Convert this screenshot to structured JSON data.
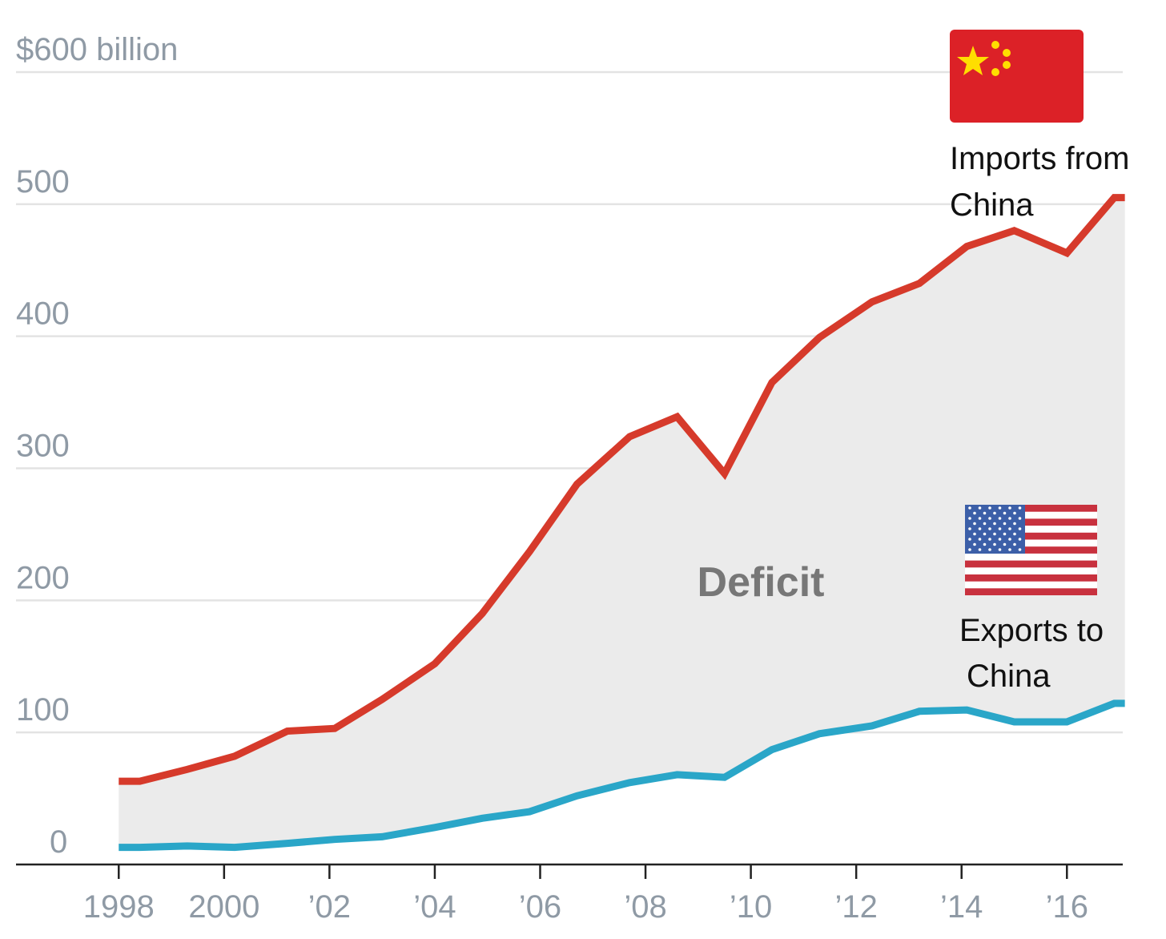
{
  "chart_data": {
    "type": "line",
    "x": [
      1998.0,
      1998.4,
      1999.3,
      2000.2,
      2001.2,
      2002.1,
      2003.0,
      2004.0,
      2004.9,
      2005.8,
      2006.7,
      2007.7,
      2008.6,
      2009.5,
      2010.4,
      2011.3,
      2012.3,
      2013.2,
      2014.1,
      2015.0,
      2016.0,
      2016.9,
      2017.1
    ],
    "series": [
      {
        "label_lines": [
          "Imports from",
          "China"
        ],
        "color": "#d63a2b",
        "values": [
          63,
          63,
          72,
          82,
          101,
          103,
          125,
          152,
          190,
          237,
          288,
          324,
          339,
          296,
          365,
          399,
          426,
          440,
          468,
          480,
          463,
          505,
          505
        ]
      },
      {
        "label_lines": [
          "Exports to",
          "China"
        ],
        "color": "#2aa6c8",
        "values": [
          13,
          13,
          14,
          13,
          16,
          19,
          21,
          28,
          35,
          40,
          52,
          62,
          68,
          66,
          87,
          99,
          105,
          116,
          117,
          108,
          108,
          122,
          122
        ]
      }
    ],
    "annotation": "Deficit",
    "area_color": "#ebebeb",
    "xlim": [
      1996.05,
      2017.06
    ],
    "ylim": [
      0,
      600
    ],
    "yticks": [
      0,
      100,
      200,
      300,
      400,
      500,
      {
        "value": 600,
        "label": "$600 billion"
      }
    ],
    "xticks": [
      1998,
      2000,
      {
        "value": 2002,
        "label": "’02"
      },
      {
        "value": 2004,
        "label": "’04"
      },
      {
        "value": 2006,
        "label": "’06"
      },
      {
        "value": 2008,
        "label": "’08"
      },
      {
        "value": 2010,
        "label": "’10"
      },
      {
        "value": 2012,
        "label": "’12"
      },
      {
        "value": 2014,
        "label": "’14"
      },
      {
        "value": 2016,
        "label": "’16"
      }
    ],
    "grid": true
  }
}
